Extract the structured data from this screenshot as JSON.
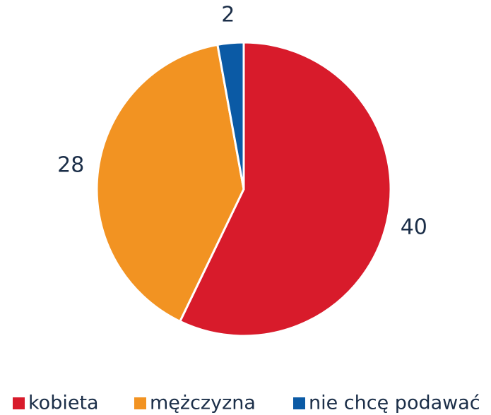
{
  "chart_data": {
    "type": "pie",
    "categories": [
      "kobieta",
      "mężczyzna",
      "nie chcę podawać"
    ],
    "values": [
      40,
      28,
      2
    ],
    "colors": [
      "#d81b2b",
      "#f29322",
      "#0b5aa5"
    ],
    "legend": "bottom"
  }
}
